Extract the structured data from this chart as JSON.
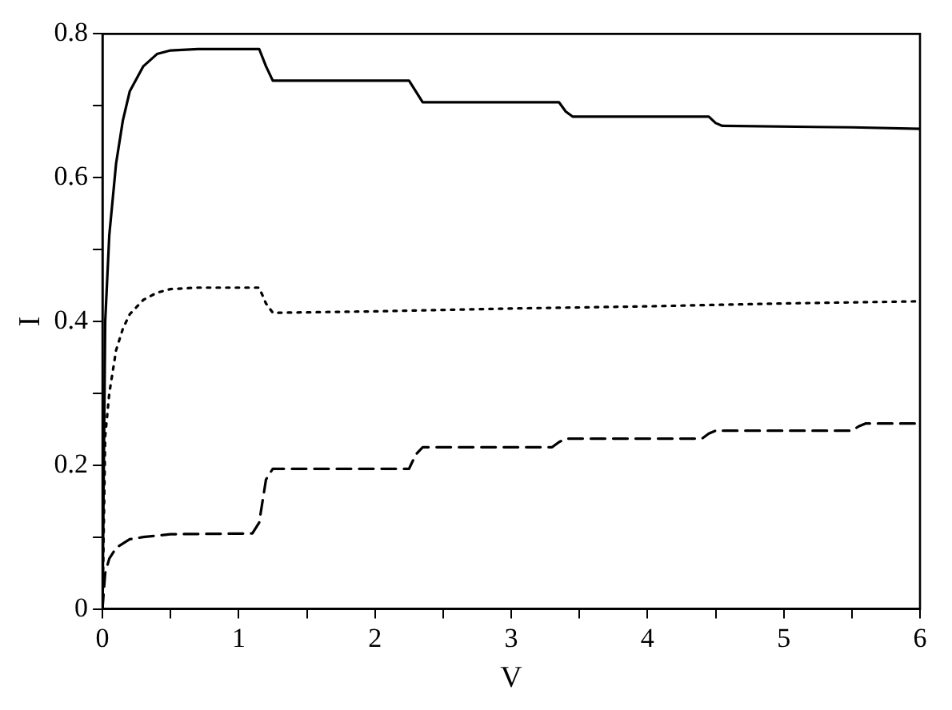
{
  "chart_data": {
    "type": "line",
    "xlabel": "V",
    "ylabel": "I",
    "xlim": [
      0,
      6
    ],
    "ylim": [
      0,
      0.8
    ],
    "xticks": [
      0,
      {
        "value": 0.5,
        "label": null
      },
      1,
      {
        "value": 1.5,
        "label": null
      },
      2,
      {
        "value": 2.5,
        "label": null
      },
      3,
      {
        "value": 3.5,
        "label": null
      },
      4,
      {
        "value": 4.5,
        "label": null
      },
      5,
      {
        "value": 5.5,
        "label": null
      },
      6
    ],
    "yticks": [
      0,
      {
        "value": 0.1,
        "label": null
      },
      0.2,
      {
        "value": 0.3,
        "label": null
      },
      0.4,
      {
        "value": 0.5,
        "label": null
      },
      0.6,
      {
        "value": 0.7,
        "label": null
      },
      0.8
    ],
    "grid": false,
    "legend": false,
    "marker": "none",
    "series": [
      {
        "color": "#000000",
        "line_style": "solid",
        "x": [
          0,
          0.02,
          0.05,
          0.1,
          0.15,
          0.2,
          0.3,
          0.4,
          0.5,
          0.7,
          1.15,
          1.2,
          1.25,
          2.25,
          2.3,
          2.35,
          3.35,
          3.4,
          3.45,
          4.45,
          4.5,
          4.55,
          5.5,
          6
        ],
        "values": [
          0,
          0.4,
          0.52,
          0.62,
          0.68,
          0.72,
          0.755,
          0.772,
          0.777,
          0.779,
          0.779,
          0.755,
          0.735,
          0.735,
          0.72,
          0.705,
          0.705,
          0.692,
          0.685,
          0.685,
          0.676,
          0.672,
          0.67,
          0.668
        ]
      },
      {
        "color": "#000000",
        "line_style": "dotted",
        "x": [
          0,
          0.02,
          0.05,
          0.1,
          0.15,
          0.2,
          0.3,
          0.4,
          0.5,
          0.7,
          1.15,
          1.2,
          1.25,
          2,
          3,
          4,
          5,
          6
        ],
        "values": [
          0,
          0.24,
          0.3,
          0.36,
          0.39,
          0.41,
          0.43,
          0.44,
          0.445,
          0.447,
          0.447,
          0.425,
          0.412,
          0.414,
          0.418,
          0.421,
          0.425,
          0.428
        ]
      },
      {
        "color": "#000000",
        "line_style": "dashed",
        "x": [
          0,
          0.02,
          0.05,
          0.1,
          0.2,
          0.3,
          0.5,
          1.1,
          1.15,
          1.2,
          1.25,
          2.25,
          2.3,
          2.35,
          3.3,
          3.35,
          3.4,
          4.4,
          4.45,
          4.5,
          5.5,
          5.55,
          5.6,
          6
        ],
        "values": [
          0,
          0.05,
          0.07,
          0.085,
          0.097,
          0.1,
          0.104,
          0.105,
          0.12,
          0.18,
          0.195,
          0.195,
          0.215,
          0.225,
          0.225,
          0.232,
          0.237,
          0.237,
          0.244,
          0.248,
          0.248,
          0.254,
          0.258,
          0.258
        ]
      }
    ]
  }
}
